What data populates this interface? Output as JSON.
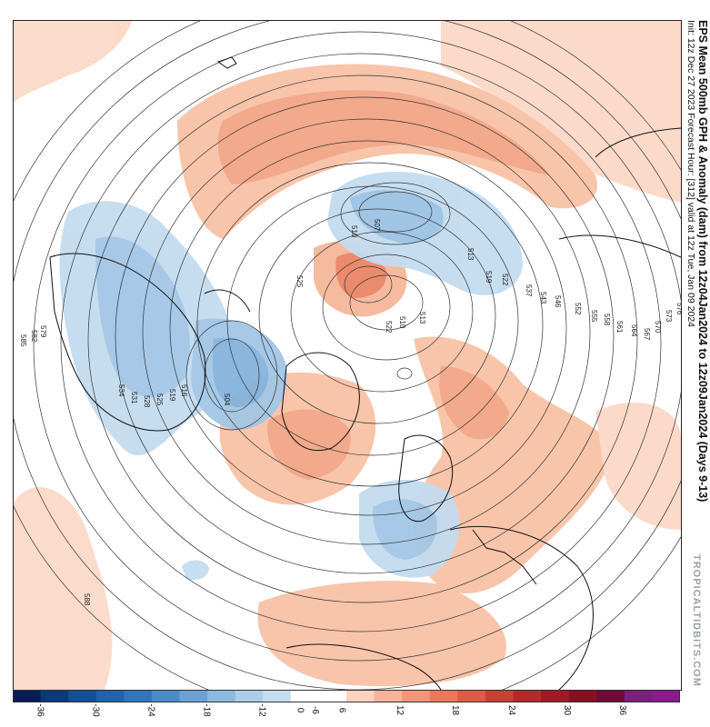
{
  "title": {
    "line1": "EPS Mean 500mb GPH & Anomaly (dam) from 12z04Jan2024 to 12z09Jan2024 (Days 9-13)",
    "line2": "Init: 12z Dec 27 2023   Forecast Hour: [312]   valid at 12z Tue, Jan 09 2024"
  },
  "watermark": "TROPICALTIDBITS.COM",
  "colorbar": {
    "ticks": [
      "-36",
      "-30",
      "-24",
      "-18",
      "-12",
      "-6",
      "0",
      "6",
      "12",
      "18",
      "24",
      "30",
      "36"
    ],
    "colors": [
      "#081d58",
      "#0b3a7a",
      "#134f96",
      "#1f63ad",
      "#2f77bd",
      "#4a8ccb",
      "#6aa2d6",
      "#8ab8e0",
      "#abcde9",
      "#c6ddf0",
      "#ffffff",
      "#ffffff",
      "#fbd2bf",
      "#f8b39a",
      "#f39577",
      "#ec7659",
      "#de5b45",
      "#cc3f34",
      "#b8282a",
      "#a01a26",
      "#86101f",
      "#6e0a35",
      "#7a1f7a",
      "#8a1a8e"
    ]
  },
  "contour_labels": [
    "510",
    "507",
    "510",
    "513",
    "519",
    "522",
    "525",
    "537",
    "543",
    "546",
    "552",
    "555",
    "558",
    "561",
    "564",
    "567",
    "570",
    "573",
    "576",
    "579",
    "582",
    "585",
    "588",
    "522",
    "513",
    "516",
    "519",
    "525",
    "528",
    "531",
    "534",
    "504"
  ],
  "colors": {
    "warm": "#f7c8b0",
    "warm_mid": "#f1a182",
    "warm_dark": "#e6785a",
    "cold": "#b9d5ec",
    "cold_mid": "#8fbbe0",
    "cold_dark": "#6a9ed2",
    "contour": "#333333",
    "coast": "#111111"
  }
}
